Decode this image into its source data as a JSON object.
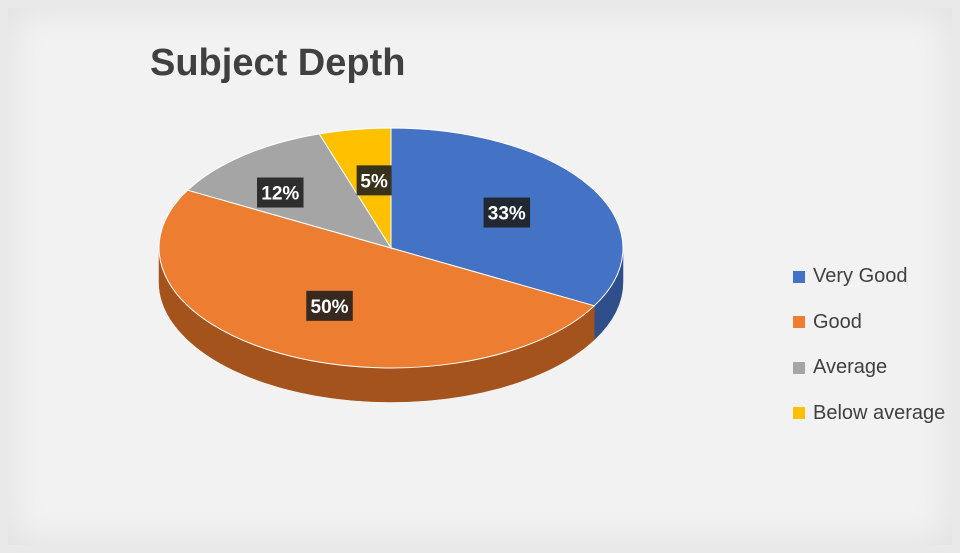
{
  "chart_data": {
    "type": "pie",
    "title": "Subject Depth",
    "categories": [
      "Very Good",
      "Good",
      "Average",
      "Below average"
    ],
    "values": [
      33,
      50,
      12,
      5
    ],
    "data_labels": [
      "33%",
      "50%",
      "12%",
      "5%"
    ],
    "colors": [
      "#4472c4",
      "#ed7d31",
      "#a5a5a5",
      "#ffc000"
    ],
    "side_colors": [
      "#2f4f8a",
      "#a4531c",
      "#6e6e6e",
      "#b48a10"
    ],
    "legend_position": "right",
    "style": "3d"
  }
}
